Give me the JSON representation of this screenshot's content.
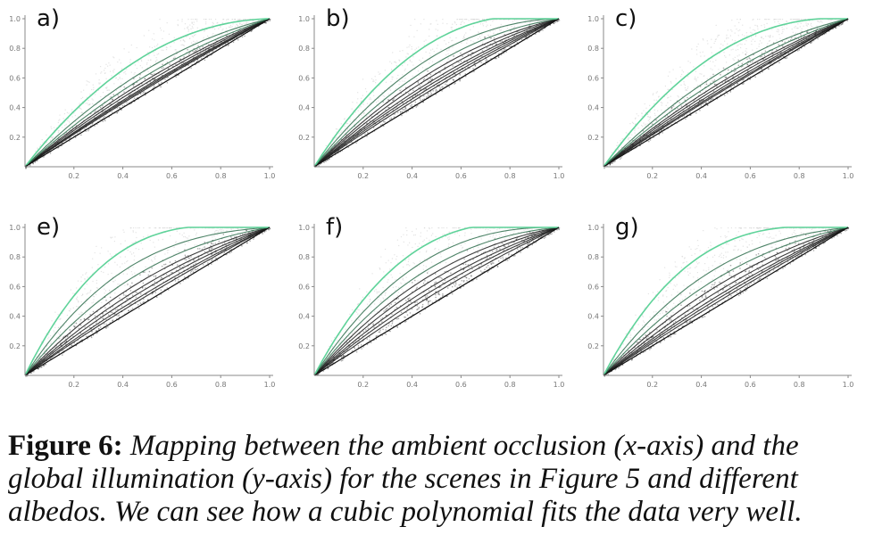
{
  "caption": {
    "label": "Figure 6:",
    "text": "Mapping between the ambient occlusion (x-axis) and the global illumination (y-axis) for the scenes in Figure 5 and different albedos. We can see how a cubic polynomial fits the data very well."
  },
  "colors": {
    "fit_curve": "#5fd39a",
    "data_dark": "#141414",
    "data_light": "#d9d9d9",
    "axis": "#888888"
  },
  "chart_data": [
    {
      "type": "scatter",
      "panel": "a)",
      "xlim": [
        0,
        1
      ],
      "ylim": [
        0,
        1
      ],
      "x_ticks": [
        "0.2",
        "0.4",
        "0.6",
        "0.8",
        "1.0"
      ],
      "y_ticks": [
        "0.2",
        "0.4",
        "0.6",
        "0.8",
        "1.0"
      ],
      "fit_curve_peaks": [
        0.26,
        0.16,
        0.12,
        0.09,
        0.07,
        0.05,
        0.04,
        0.03
      ],
      "fit_curve_flatness": 0.15
    },
    {
      "type": "scatter",
      "panel": "b)",
      "xlim": [
        0,
        1
      ],
      "ylim": [
        0,
        1
      ],
      "x_ticks": [
        "0.2",
        "0.4",
        "0.6",
        "0.8",
        "1.0"
      ],
      "y_ticks": [
        "0.2",
        "0.4",
        "0.6",
        "0.8",
        "1.0"
      ],
      "fit_curve_peaks": [
        0.36,
        0.26,
        0.2,
        0.16,
        0.13,
        0.1,
        0.08,
        0.06,
        0.04
      ],
      "fit_curve_flatness": 0.2
    },
    {
      "type": "scatter",
      "panel": "c)",
      "xlim": [
        0,
        1
      ],
      "ylim": [
        0,
        1
      ],
      "x_ticks": [
        "0.2",
        "0.4",
        "0.6",
        "0.8",
        "1.0"
      ],
      "y_ticks": [
        "0.2",
        "0.4",
        "0.6",
        "0.8",
        "1.0"
      ],
      "fit_curve_peaks": [
        0.3,
        0.16,
        0.12,
        0.09,
        0.07,
        0.05,
        0.035,
        0.025
      ],
      "fit_curve_flatness": 0.15
    },
    {
      "type": "scatter",
      "panel": "e)",
      "xlim": [
        0,
        1
      ],
      "ylim": [
        0,
        1
      ],
      "x_ticks": [
        "0.2",
        "0.4",
        "0.6",
        "0.8",
        "1.0"
      ],
      "y_ticks": [
        "0.2",
        "0.4",
        "0.6",
        "0.8",
        "1.0"
      ],
      "fit_curve_peaks": [
        0.43,
        0.3,
        0.22,
        0.16,
        0.12,
        0.09,
        0.06,
        0.04
      ],
      "fit_curve_flatness": 0.75
    },
    {
      "type": "scatter",
      "panel": "f)",
      "xlim": [
        0,
        1
      ],
      "ylim": [
        0,
        1
      ],
      "x_ticks": [
        "0.2",
        "0.4",
        "0.6",
        "0.8",
        "1.0"
      ],
      "y_ticks": [
        "0.2",
        "0.4",
        "0.6",
        "0.8",
        "1.0"
      ],
      "fit_curve_peaks": [
        0.42,
        0.32,
        0.25,
        0.2,
        0.16,
        0.12,
        0.09,
        0.06
      ],
      "fit_curve_flatness": 0.5
    },
    {
      "type": "scatter",
      "panel": "g)",
      "xlim": [
        0,
        1
      ],
      "ylim": [
        0,
        1
      ],
      "x_ticks": [
        "0.2",
        "0.4",
        "0.6",
        "0.8",
        "1.0"
      ],
      "y_ticks": [
        "0.2",
        "0.4",
        "0.6",
        "0.8",
        "1.0"
      ],
      "fit_curve_peaks": [
        0.4,
        0.26,
        0.19,
        0.14,
        0.1,
        0.07,
        0.05,
        0.03
      ],
      "fit_curve_flatness": 0.65
    }
  ]
}
